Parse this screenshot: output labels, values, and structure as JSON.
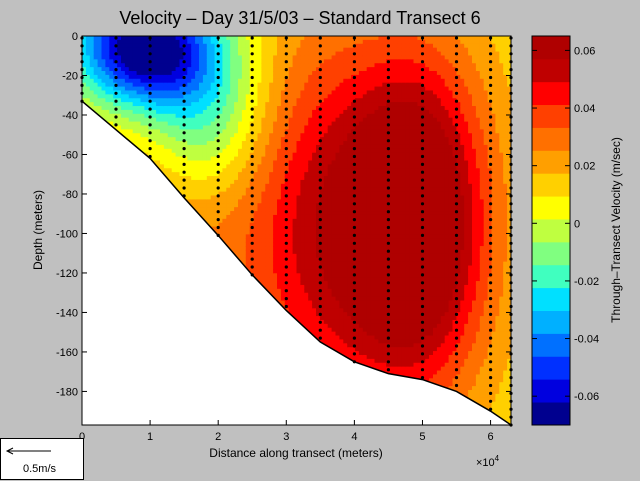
{
  "chart_data": {
    "type": "heatmap",
    "subtype": "filled-contour",
    "title": "Velocity – Day 31/5/03 – Standard Transect 6",
    "xlabel": "Distance along transect (meters)",
    "x_multiplier_label": "×10",
    "x_multiplier_exponent": "4",
    "ylabel": "Depth (meters)",
    "colorbar_label": "Through–Transect Velocity (m/sec)",
    "xlim": [
      0,
      6.3
    ],
    "ylim": [
      -197,
      0
    ],
    "x_ticks": [
      0,
      1,
      2,
      3,
      4,
      5,
      6
    ],
    "y_ticks": [
      0,
      -20,
      -40,
      -60,
      -80,
      -100,
      -120,
      -140,
      -160,
      -180
    ],
    "colorbar_range": [
      -0.07,
      0.065
    ],
    "colorbar_ticks": [
      0.06,
      0.04,
      0.02,
      0,
      -0.02,
      -0.04,
      -0.06
    ],
    "colormap": [
      "#00008f",
      "#0000df",
      "#0030ff",
      "#0070ff",
      "#00b0ff",
      "#00e0ff",
      "#40ffbf",
      "#80ff80",
      "#bfff40",
      "#ffff00",
      "#ffd000",
      "#ff9f00",
      "#ff7000",
      "#ff4000",
      "#ff0000",
      "#bf0000",
      "#af0000"
    ],
    "bottom_profile": [
      [
        0,
        -33
      ],
      [
        1,
        -62
      ],
      [
        1.5,
        -82
      ],
      [
        2,
        -101
      ],
      [
        2.5,
        -121
      ],
      [
        3,
        -139
      ],
      [
        3.5,
        -155
      ],
      [
        4,
        -165
      ],
      [
        4.5,
        -171
      ],
      [
        5,
        -174
      ],
      [
        5.5,
        -180
      ],
      [
        6,
        -190
      ],
      [
        6.3,
        -197
      ]
    ],
    "station_x": [
      0,
      0.5,
      1,
      1.5,
      2,
      2.5,
      3,
      3.5,
      4,
      4.5,
      5,
      5.5,
      6,
      6.3
    ],
    "velocity_field_features": [
      {
        "kind": "max",
        "x": 4.9,
        "depth": -95,
        "value": 0.065
      },
      {
        "kind": "min",
        "x": 0.9,
        "depth": -8,
        "value": -0.065
      }
    ]
  },
  "scale_vector": {
    "label": "0.5m/s"
  }
}
